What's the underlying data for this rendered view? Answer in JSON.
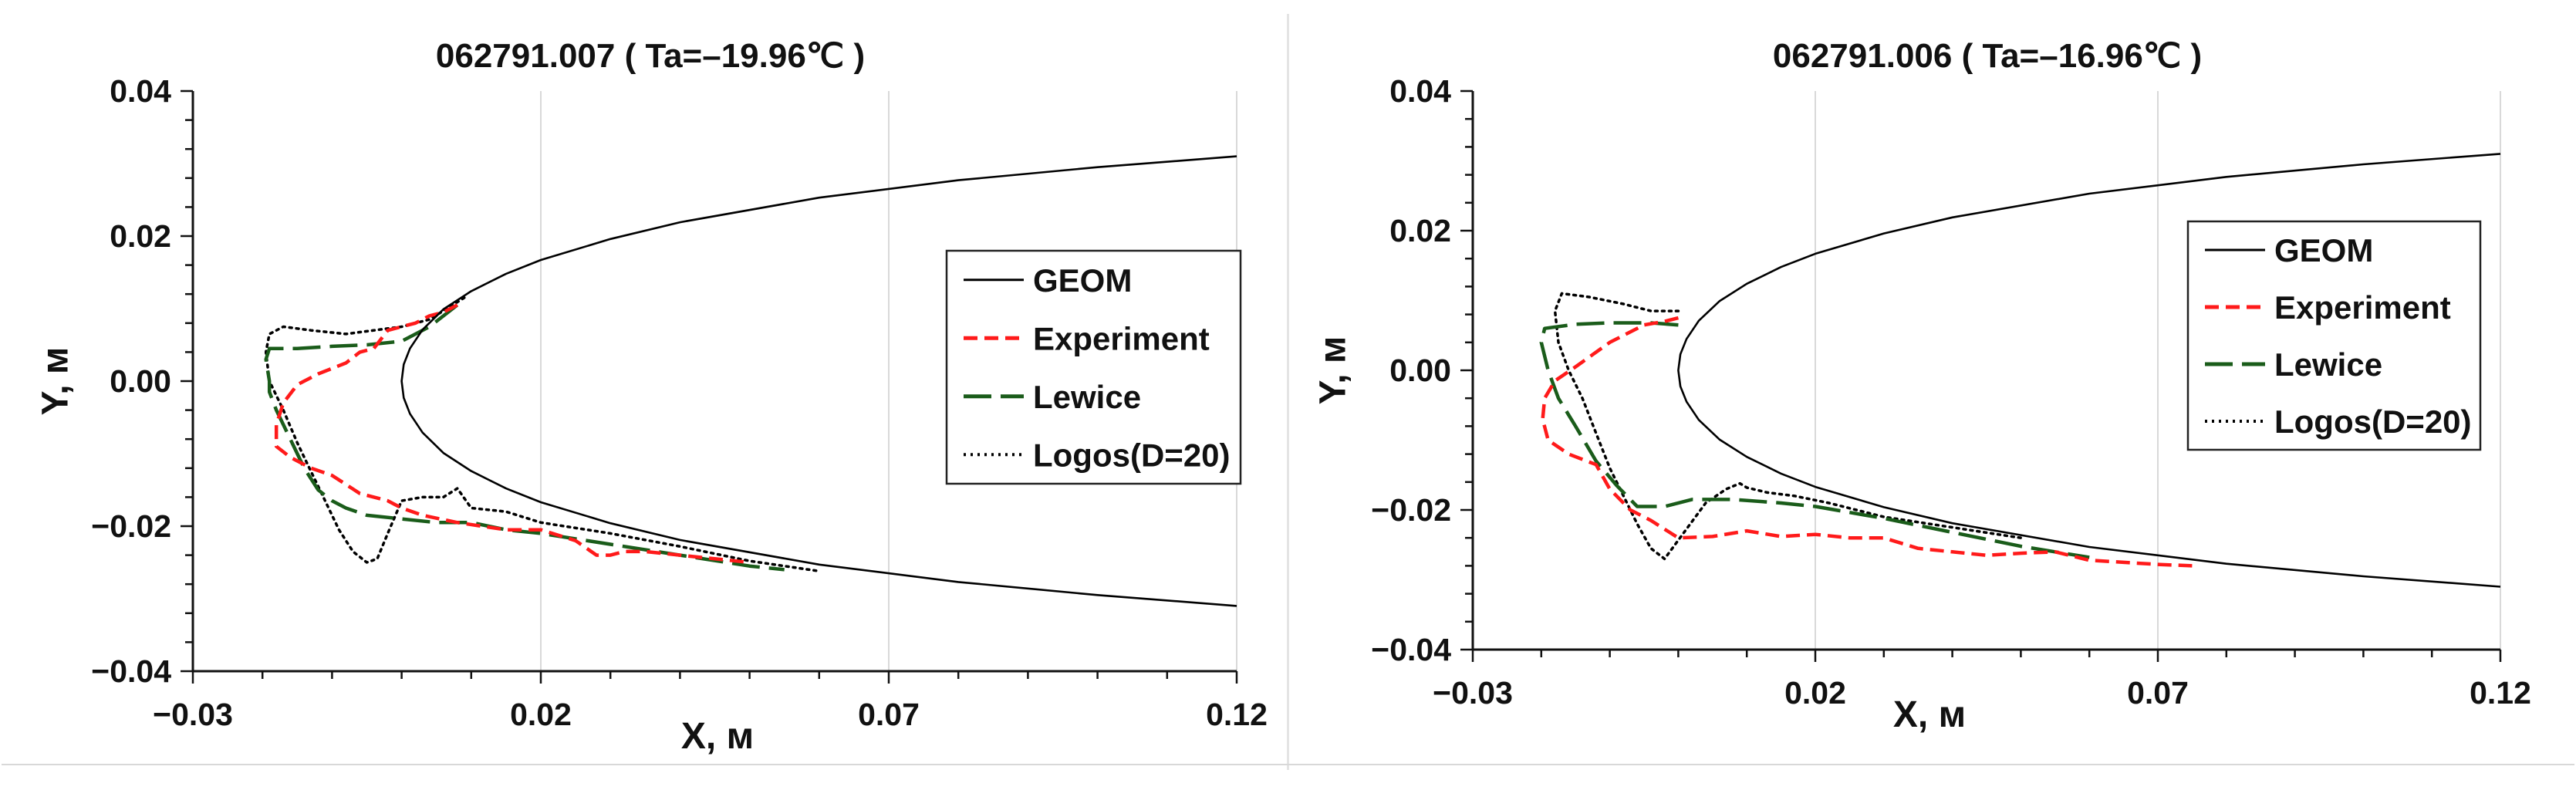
{
  "chart_data": [
    {
      "type": "line",
      "title": "062791.007 ( Ta=–19.96℃ )",
      "xlabel": "X, м",
      "ylabel": "Y, м",
      "xlim": [
        -0.03,
        0.12
      ],
      "ylim": [
        -0.04,
        0.04
      ],
      "xticks": [
        -0.03,
        0.02,
        0.07,
        0.12
      ],
      "xtick_labels": [
        "−0.03",
        "0.02",
        "0.07",
        "0.12"
      ],
      "yticks": [
        -0.04,
        -0.02,
        0.0,
        0.02,
        0.04
      ],
      "ytick_labels": [
        "−0.04",
        "−0.02",
        "0.00",
        "0.02",
        "0.04"
      ],
      "grid": "vertical-major",
      "legend_position": "right",
      "series": [
        {
          "name": "GEOM",
          "color": "#000000",
          "style": "solid",
          "x": [
            0.12,
            0.1,
            0.08,
            0.06,
            0.04,
            0.03,
            0.02,
            0.015,
            0.01,
            0.006,
            0.003,
            0.0012,
            0.0003,
            0.0,
            0.0003,
            0.0012,
            0.003,
            0.006,
            0.01,
            0.015,
            0.02,
            0.03,
            0.04,
            0.06,
            0.08,
            0.1,
            0.12
          ],
          "y": [
            0.031,
            0.0295,
            0.0277,
            0.0253,
            0.0219,
            0.0196,
            0.0167,
            0.0148,
            0.0124,
            0.0099,
            0.0071,
            0.0045,
            0.0023,
            0.0,
            -0.0023,
            -0.0045,
            -0.0071,
            -0.0099,
            -0.0124,
            -0.0148,
            -0.0167,
            -0.0196,
            -0.0219,
            -0.0253,
            -0.0277,
            -0.0295,
            -0.031
          ]
        },
        {
          "name": "Experiment",
          "color": "#ff1a1a",
          "style": "dashed",
          "x": [
            0.008,
            0.006,
            0.004,
            0.002,
            0.0,
            -0.002,
            -0.004,
            -0.006,
            -0.008,
            -0.012,
            -0.015,
            -0.017,
            -0.018,
            -0.018,
            -0.016,
            -0.013,
            -0.01,
            -0.006,
            -0.002,
            0.0,
            0.003,
            0.008,
            0.015,
            0.02,
            0.025,
            0.028,
            0.03,
            0.032,
            0.035,
            0.04,
            0.045,
            0.05
          ],
          "y": [
            0.0105,
            0.0095,
            0.009,
            0.008,
            0.0075,
            0.007,
            0.0045,
            0.004,
            0.0025,
            0.001,
            -0.0005,
            -0.003,
            -0.006,
            -0.009,
            -0.0105,
            -0.012,
            -0.013,
            -0.0155,
            -0.0165,
            -0.0175,
            -0.0185,
            -0.0195,
            -0.0205,
            -0.0205,
            -0.022,
            -0.024,
            -0.024,
            -0.0235,
            -0.0235,
            -0.024,
            -0.0245,
            -0.025
          ]
        },
        {
          "name": "Lewice",
          "color": "#1a5c1a",
          "style": "longdash",
          "x": [
            0.008,
            0.004,
            0.0,
            -0.005,
            -0.01,
            -0.015,
            -0.019,
            -0.0195,
            -0.019,
            -0.019,
            -0.018,
            -0.016,
            -0.014,
            -0.012,
            -0.01,
            -0.008,
            -0.005,
            0.0,
            0.005,
            0.01,
            0.015,
            0.02,
            0.03,
            0.04,
            0.05,
            0.055
          ],
          "y": [
            0.0105,
            0.0075,
            0.0055,
            0.005,
            0.0048,
            0.0045,
            0.0045,
            0.003,
            0.0,
            -0.0015,
            -0.004,
            -0.008,
            -0.012,
            -0.015,
            -0.0165,
            -0.0175,
            -0.0185,
            -0.019,
            -0.0195,
            -0.0195,
            -0.0205,
            -0.021,
            -0.0225,
            -0.024,
            -0.0255,
            -0.026
          ]
        },
        {
          "name": "Logos(D=20)",
          "color": "#000000",
          "style": "dotted",
          "x": [
            0.009,
            0.004,
            0.0,
            -0.004,
            -0.008,
            -0.013,
            -0.017,
            -0.019,
            -0.0195,
            -0.019,
            -0.017,
            -0.015,
            -0.013,
            -0.011,
            -0.009,
            -0.007,
            -0.005,
            -0.0035,
            -0.002,
            0.0,
            0.003,
            0.006,
            0.008,
            0.01,
            0.015,
            0.02,
            0.03,
            0.04,
            0.05,
            0.06
          ],
          "y": [
            0.0115,
            0.0085,
            0.0075,
            0.007,
            0.0065,
            0.007,
            0.0075,
            0.0065,
            0.004,
            0.0,
            -0.004,
            -0.0085,
            -0.0125,
            -0.0165,
            -0.0205,
            -0.0235,
            -0.025,
            -0.0245,
            -0.021,
            -0.0165,
            -0.016,
            -0.016,
            -0.0148,
            -0.0175,
            -0.018,
            -0.0195,
            -0.021,
            -0.0228,
            -0.0248,
            -0.0262
          ]
        }
      ]
    },
    {
      "type": "line",
      "title": "062791.006 ( Ta=–16.96℃ )",
      "xlabel": "X, м",
      "ylabel": "Y, м",
      "xlim": [
        -0.03,
        0.12
      ],
      "ylim": [
        -0.04,
        0.04
      ],
      "xticks": [
        -0.03,
        0.02,
        0.07,
        0.12
      ],
      "xtick_labels": [
        "−0.03",
        "0.02",
        "0.07",
        "0.12"
      ],
      "yticks": [
        -0.04,
        -0.02,
        0.0,
        0.02,
        0.04
      ],
      "ytick_labels": [
        "−0.04",
        "−0.02",
        "0.00",
        "0.02",
        "0.04"
      ],
      "grid": "vertical-major",
      "legend_position": "top-right",
      "series": [
        {
          "name": "GEOM",
          "color": "#000000",
          "style": "solid",
          "x": [
            0.12,
            0.1,
            0.08,
            0.06,
            0.04,
            0.03,
            0.02,
            0.015,
            0.01,
            0.006,
            0.003,
            0.0012,
            0.0003,
            0.0,
            0.0003,
            0.0012,
            0.003,
            0.006,
            0.01,
            0.015,
            0.02,
            0.03,
            0.04,
            0.06,
            0.08,
            0.1,
            0.12
          ],
          "y": [
            0.031,
            0.0295,
            0.0277,
            0.0253,
            0.0219,
            0.0196,
            0.0167,
            0.0148,
            0.0124,
            0.0099,
            0.0071,
            0.0045,
            0.0023,
            0.0,
            -0.0023,
            -0.0045,
            -0.0071,
            -0.0099,
            -0.0124,
            -0.0148,
            -0.0167,
            -0.0196,
            -0.0219,
            -0.0253,
            -0.0277,
            -0.0295,
            -0.031
          ]
        },
        {
          "name": "Experiment",
          "color": "#ff1a1a",
          "style": "dashed",
          "x": [
            0.0,
            -0.002,
            -0.005,
            -0.01,
            -0.015,
            -0.018,
            -0.0195,
            -0.0198,
            -0.019,
            -0.016,
            -0.012,
            -0.01,
            -0.007,
            -0.004,
            0.0,
            0.005,
            0.01,
            0.015,
            0.02,
            0.025,
            0.03,
            0.035,
            0.04,
            0.045,
            0.05,
            0.055,
            0.06,
            0.065,
            0.07,
            0.075
          ],
          "y": [
            0.0075,
            0.007,
            0.0065,
            0.004,
            0.0005,
            -0.0015,
            -0.004,
            -0.007,
            -0.01,
            -0.012,
            -0.0135,
            -0.017,
            -0.02,
            -0.0215,
            -0.024,
            -0.0238,
            -0.023,
            -0.0238,
            -0.0235,
            -0.024,
            -0.024,
            -0.0255,
            -0.026,
            -0.0265,
            -0.0262,
            -0.026,
            -0.0272,
            -0.0275,
            -0.0278,
            -0.028
          ]
        },
        {
          "name": "Lewice",
          "color": "#1a5c1a",
          "style": "longdash",
          "x": [
            0.0,
            -0.004,
            -0.01,
            -0.015,
            -0.0195,
            -0.02,
            -0.019,
            -0.0175,
            -0.015,
            -0.012,
            -0.009,
            -0.006,
            -0.002,
            0.002,
            0.008,
            0.015,
            0.02,
            0.03,
            0.04,
            0.05,
            0.06
          ],
          "y": [
            0.0065,
            0.0068,
            0.0068,
            0.0066,
            0.006,
            0.004,
            0.0,
            -0.004,
            -0.008,
            -0.013,
            -0.0165,
            -0.0195,
            -0.0195,
            -0.0185,
            -0.0185,
            -0.019,
            -0.0195,
            -0.0212,
            -0.0232,
            -0.0252,
            -0.0268
          ]
        },
        {
          "name": "Logos(D=20)",
          "color": "#000000",
          "style": "dotted",
          "x": [
            0.0,
            -0.004,
            -0.008,
            -0.013,
            -0.017,
            -0.018,
            -0.0175,
            -0.016,
            -0.014,
            -0.012,
            -0.01,
            -0.008,
            -0.006,
            -0.004,
            -0.002,
            0.001,
            0.004,
            0.007,
            0.009,
            0.01,
            0.013,
            0.017,
            0.022,
            0.03,
            0.04,
            0.05
          ],
          "y": [
            0.0085,
            0.0085,
            0.0095,
            0.0105,
            0.011,
            0.0085,
            0.004,
            0.0,
            -0.004,
            -0.009,
            -0.014,
            -0.018,
            -0.022,
            -0.0255,
            -0.027,
            -0.023,
            -0.019,
            -0.017,
            -0.0162,
            -0.0168,
            -0.0175,
            -0.018,
            -0.019,
            -0.021,
            -0.0225,
            -0.024
          ]
        }
      ]
    }
  ]
}
